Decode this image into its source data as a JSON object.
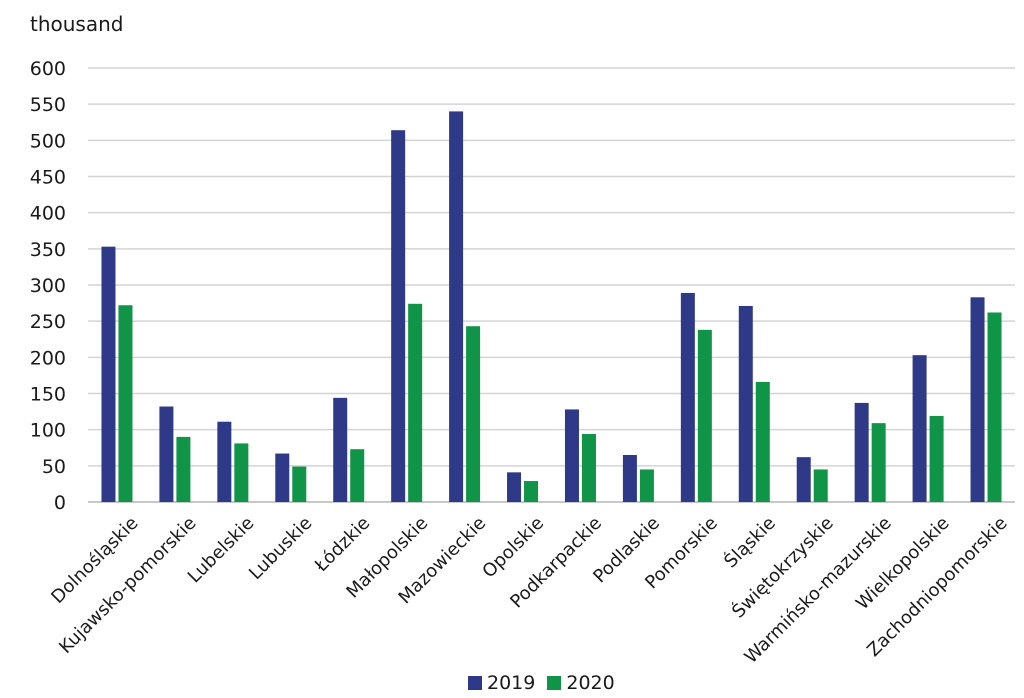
{
  "chart_data": {
    "type": "bar",
    "ylabel": "thousand",
    "ylim": [
      0,
      600
    ],
    "yticks": [
      0,
      50,
      100,
      150,
      200,
      250,
      300,
      350,
      400,
      450,
      500,
      550,
      600
    ],
    "grid": true,
    "legend_position": "bottom",
    "categories": [
      "Dolnośląskie",
      "Kujawsko-pomorskie",
      "Lubelskie",
      "Lubuskie",
      "Łódzkie",
      "Małopolskie",
      "Mazowieckie",
      "Opolskie",
      "Podkarpackie",
      "Podlaskie",
      "Pomorskie",
      "Śląskie",
      "Świętokrzyskie",
      "Warmińsko-mazurskie",
      "Wielkopolskie",
      "Zachodniopomorskie"
    ],
    "series": [
      {
        "name": "2019",
        "color": "#2e3a87",
        "values": [
          353,
          132,
          111,
          67,
          144,
          514,
          540,
          41,
          128,
          65,
          289,
          271,
          62,
          137,
          203,
          283
        ]
      },
      {
        "name": "2020",
        "color": "#0f9448",
        "values": [
          272,
          90,
          81,
          49,
          73,
          274,
          243,
          29,
          94,
          45,
          238,
          166,
          45,
          109,
          119,
          262
        ]
      }
    ]
  }
}
